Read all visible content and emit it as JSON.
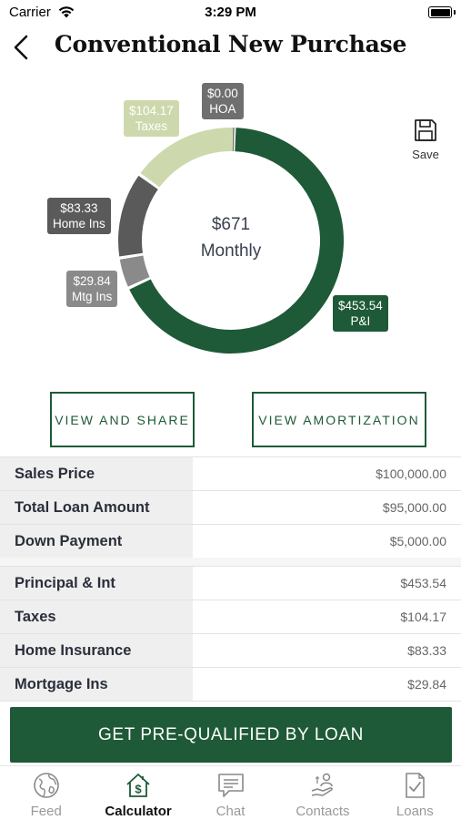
{
  "status_bar": {
    "carrier": "Carrier",
    "time": "3:29 PM"
  },
  "header": {
    "title": "Conventional New Purchase"
  },
  "save_label": "Save",
  "chart_data": {
    "type": "pie",
    "donut": true,
    "center_amount": "$671",
    "center_label": "Monthly",
    "slices": [
      {
        "name": "P&I",
        "value": 453.54,
        "label": "$453.54",
        "color": "#1e5a37"
      },
      {
        "name": "Mtg Ins",
        "value": 29.84,
        "label": "$29.84",
        "color": "#8a8a8a"
      },
      {
        "name": "Home Ins",
        "value": 83.33,
        "label": "$83.33",
        "color": "#5a5a5a"
      },
      {
        "name": "Taxes",
        "value": 104.17,
        "label": "$104.17",
        "color": "#cdd9ad"
      },
      {
        "name": "HOA",
        "value": 0.0,
        "label": "$0.00",
        "color": "#6f6f6f"
      }
    ]
  },
  "buttons": {
    "view_share": "VIEW AND SHARE",
    "view_amortization": "VIEW AMORTIZATION"
  },
  "loan_table": [
    {
      "label": "Sales Price",
      "value": "$100,000.00"
    },
    {
      "label": "Total Loan Amount",
      "value": "$95,000.00"
    },
    {
      "label": "Down Payment",
      "value": "$5,000.00"
    }
  ],
  "payment_table": [
    {
      "label": "Principal & Int",
      "value": "$453.54"
    },
    {
      "label": "Taxes",
      "value": "$104.17"
    },
    {
      "label": "Home Insurance",
      "value": "$83.33"
    },
    {
      "label": "Mortgage Ins",
      "value": "$29.84"
    }
  ],
  "cta_label": "GET PRE-QUALIFIED BY LOAN",
  "tabs": [
    {
      "label": "Feed",
      "icon": "globe-icon",
      "active": false
    },
    {
      "label": "Calculator",
      "icon": "house-dollar-icon",
      "active": true
    },
    {
      "label": "Chat",
      "icon": "chat-icon",
      "active": false
    },
    {
      "label": "Contacts",
      "icon": "contacts-icon",
      "active": false
    },
    {
      "label": "Loans",
      "icon": "loan-document-icon",
      "active": false
    }
  ]
}
